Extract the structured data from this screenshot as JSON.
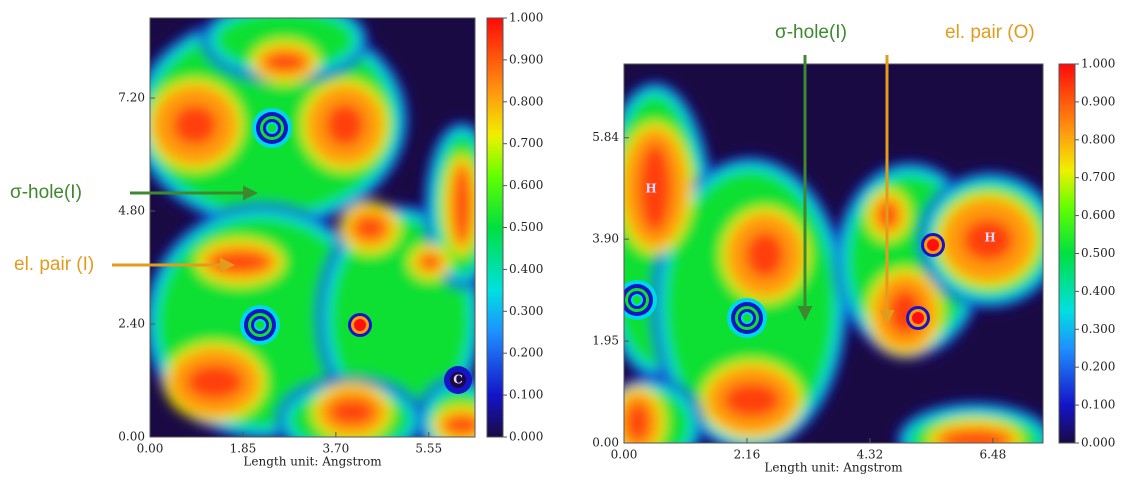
{
  "chart_data": [
    {
      "type": "heatmap",
      "xlabel": "Length unit: Angstrom",
      "xlim": [
        0,
        6.47
      ],
      "ylim": [
        0,
        8.9
      ],
      "clim": [
        0,
        1
      ],
      "xticks": [
        {
          "value": 0,
          "label": "0.00"
        },
        {
          "value": 1.85,
          "label": "1.85"
        },
        {
          "value": 3.7,
          "label": "3.70"
        },
        {
          "value": 5.55,
          "label": "5.55"
        }
      ],
      "yticks": [
        {
          "value": 0,
          "label": "0.00"
        },
        {
          "value": 2.4,
          "label": "2.40"
        },
        {
          "value": 4.8,
          "label": "4.80"
        },
        {
          "value": 7.2,
          "label": "7.20"
        }
      ],
      "cticks": [
        {
          "value": 0,
          "label": "0.000"
        },
        {
          "value": 0.1,
          "label": "0.100"
        },
        {
          "value": 0.2,
          "label": "0.200"
        },
        {
          "value": 0.3,
          "label": "0.300"
        },
        {
          "value": 0.4,
          "label": "0.400"
        },
        {
          "value": 0.5,
          "label": "0.500"
        },
        {
          "value": 0.6,
          "label": "0.600"
        },
        {
          "value": 0.7,
          "label": "0.700"
        },
        {
          "value": 0.8,
          "label": "0.800"
        },
        {
          "value": 0.9,
          "label": "0.900"
        },
        {
          "value": 1,
          "label": "1.000"
        }
      ],
      "atom_labels": [
        "C"
      ],
      "annotations": [
        {
          "text": "σ-hole(I)",
          "color": "#3d8a2e"
        },
        {
          "text": "el. pair (I)",
          "color": "#e39b1c"
        }
      ]
    },
    {
      "type": "heatmap",
      "xlabel": "Length unit: Angstrom",
      "xlim": [
        0,
        7.36
      ],
      "ylim": [
        0,
        7.25
      ],
      "clim": [
        0,
        1
      ],
      "xticks": [
        {
          "value": 0,
          "label": "0.00"
        },
        {
          "value": 2.16,
          "label": "2.16"
        },
        {
          "value": 4.32,
          "label": "4.32"
        },
        {
          "value": 6.48,
          "label": "6.48"
        }
      ],
      "yticks": [
        {
          "value": 0,
          "label": "0.00"
        },
        {
          "value": 1.95,
          "label": "1.95"
        },
        {
          "value": 3.9,
          "label": "3.90"
        },
        {
          "value": 5.84,
          "label": "5.84"
        }
      ],
      "cticks": [
        {
          "value": 0,
          "label": "0.000"
        },
        {
          "value": 0.1,
          "label": "0.100"
        },
        {
          "value": 0.2,
          "label": "0.200"
        },
        {
          "value": 0.3,
          "label": "0.300"
        },
        {
          "value": 0.4,
          "label": "0.400"
        },
        {
          "value": 0.5,
          "label": "0.500"
        },
        {
          "value": 0.6,
          "label": "0.600"
        },
        {
          "value": 0.7,
          "label": "0.700"
        },
        {
          "value": 0.8,
          "label": "0.800"
        },
        {
          "value": 0.9,
          "label": "0.900"
        },
        {
          "value": 1,
          "label": "1.000"
        }
      ],
      "atom_labels": [
        "H",
        "H"
      ],
      "annotations": [
        {
          "text": "σ-hole(I)",
          "color": "#3d8a2e"
        },
        {
          "text": "el. pair (O)",
          "color": "#e39b1c"
        }
      ]
    }
  ]
}
